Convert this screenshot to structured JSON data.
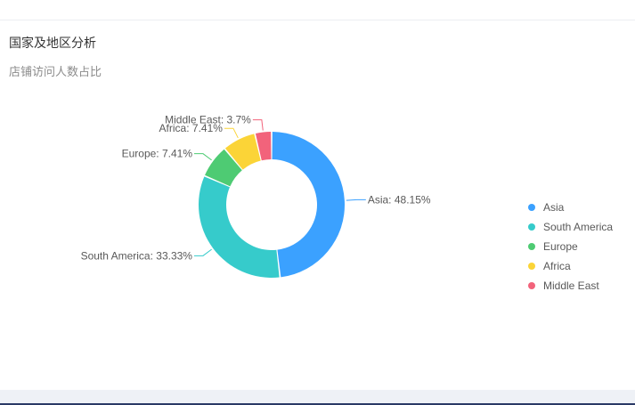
{
  "card": {
    "title": "国家及地区分析",
    "subtitle": "店铺访问人数占比"
  },
  "chart_data": {
    "type": "pie",
    "variant": "donut",
    "categories": [
      "Asia",
      "South America",
      "Europe",
      "Africa",
      "Middle East"
    ],
    "values": [
      48.15,
      33.33,
      7.41,
      7.41,
      3.7
    ],
    "data_labels": [
      "Asia: 48.15%",
      "South America: 33.33%",
      "Europe: 7.41%",
      "Africa: 7.41%",
      "Middle East: 3.7%"
    ],
    "colors": [
      "#3ba1ff",
      "#36cbcb",
      "#4ecb73",
      "#fbd437",
      "#f2637b"
    ],
    "unit": "%",
    "legend_placement": "right"
  }
}
